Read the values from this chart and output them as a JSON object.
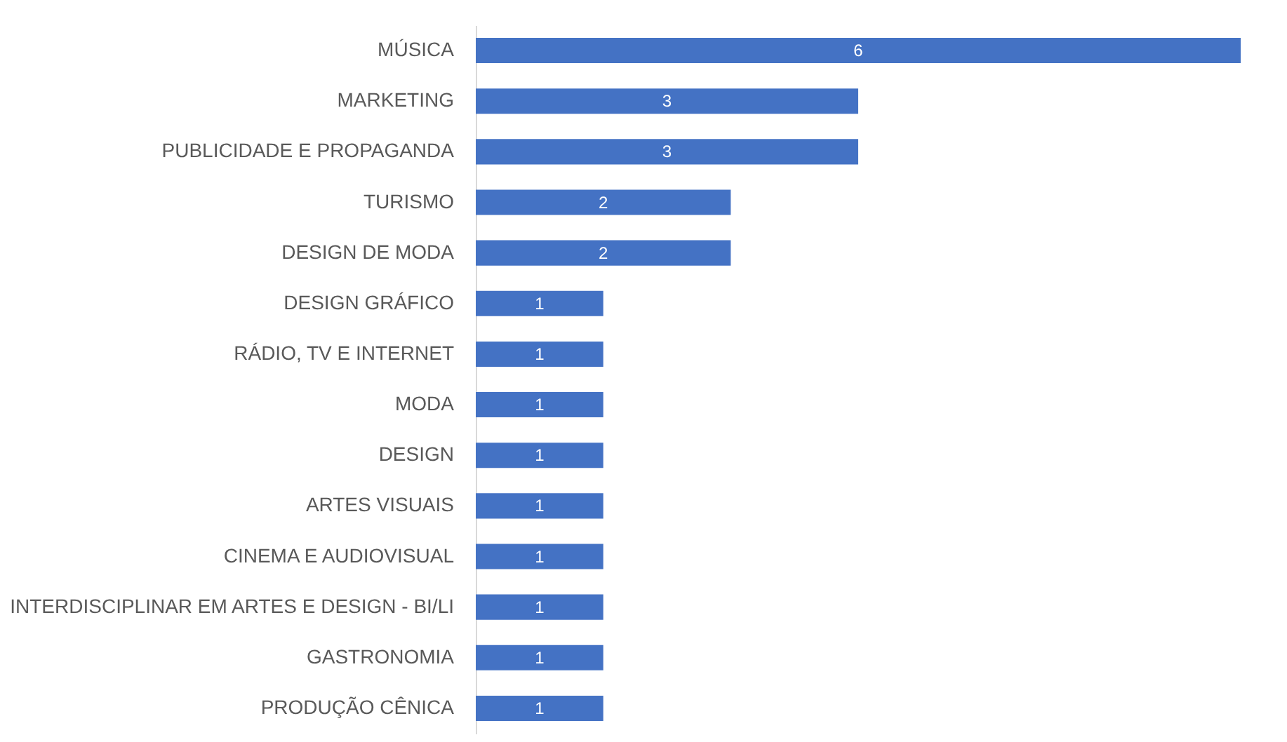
{
  "chart_data": {
    "type": "bar",
    "orientation": "horizontal",
    "data_labels": true,
    "color": "#4472c4",
    "categories": [
      "MÚSICA",
      "MARKETING",
      "PUBLICIDADE E PROPAGANDA",
      "TURISMO",
      "DESIGN DE MODA",
      "DESIGN GRÁFICO",
      "RÁDIO, TV E INTERNET",
      "MODA",
      "DESIGN",
      "ARTES VISUAIS",
      "CINEMA E AUDIOVISUAL",
      "INTERDISCIPLINAR EM ARTES E DESIGN - BI/LI",
      "GASTRONOMIA",
      "PRODUÇÃO CÊNICA"
    ],
    "values": [
      6,
      3,
      3,
      2,
      2,
      1,
      1,
      1,
      1,
      1,
      1,
      1,
      1,
      1
    ]
  }
}
